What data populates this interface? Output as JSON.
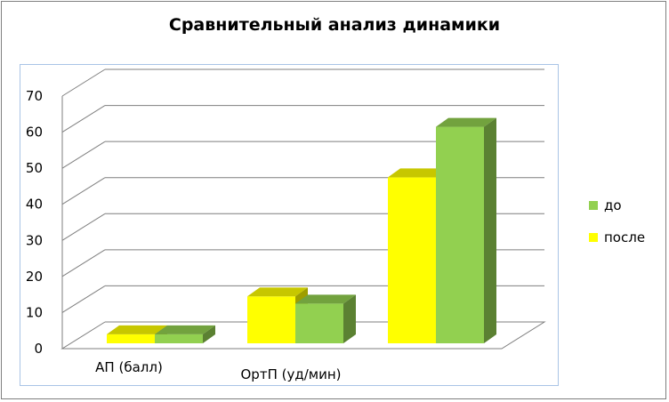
{
  "chart_data": {
    "type": "bar",
    "title": "Сравнительный анализ динамики",
    "categories": [
      "АП (балл)",
      "ОртП (уд/мин)",
      ""
    ],
    "series": [
      {
        "name": "до",
        "values": [
          2.5,
          11,
          60
        ],
        "color": "#92d050"
      },
      {
        "name": "после",
        "values": [
          2.5,
          13,
          46
        ],
        "color": "#ffff00"
      }
    ],
    "ylim": [
      0,
      70
    ],
    "yticks": [
      0,
      10,
      20,
      30,
      40,
      50,
      60,
      70
    ],
    "grid": true,
    "legend_position": "right"
  }
}
